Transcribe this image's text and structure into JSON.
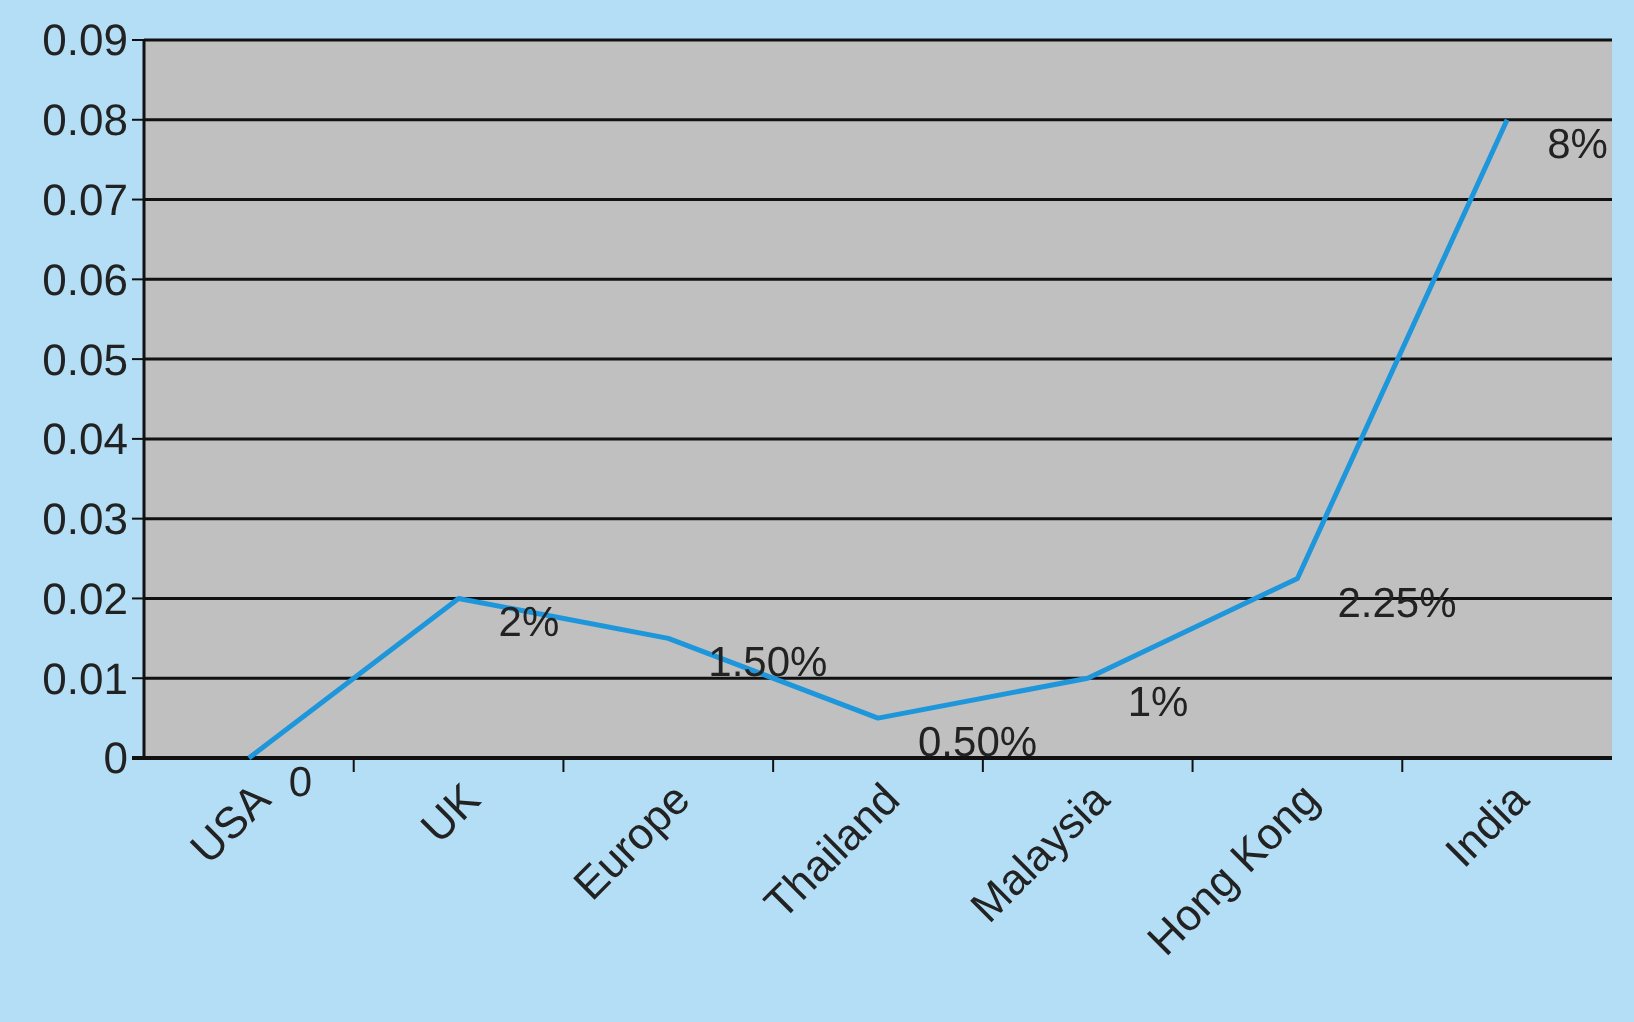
{
  "chart_data": {
    "type": "line",
    "categories": [
      "USA",
      "UK",
      "Europe",
      "Thailand",
      "Malaysia",
      "Hong Kong",
      "India"
    ],
    "series": [
      {
        "color": "#1e96dc",
        "values": [
          0,
          0.02,
          0.015,
          0.005,
          0.01,
          0.0225,
          0.08
        ],
        "value_labels": [
          "0",
          "2%",
          "1.50%",
          "0.50%",
          "1%",
          "2.25%",
          "8%"
        ]
      }
    ],
    "ylim": [
      0,
      0.09
    ],
    "yticks": [
      0,
      0.01,
      0.02,
      0.03,
      0.04,
      0.05,
      0.06,
      0.07,
      0.08,
      0.09
    ],
    "grid": "y",
    "marker": "none",
    "line_style": "solid"
  }
}
